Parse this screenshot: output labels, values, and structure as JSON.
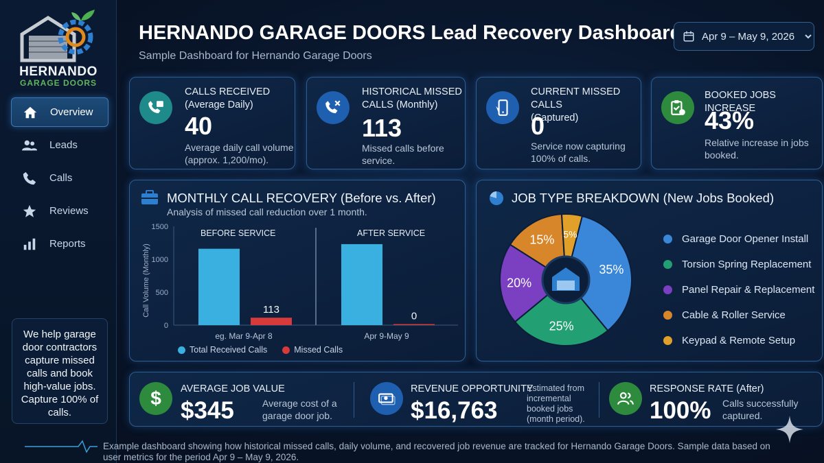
{
  "brand": {
    "name": "HERNANDO",
    "tagline": "GARAGE DOORS"
  },
  "header": {
    "title": "HERNANDO GARAGE DOORS Lead Recovery Dashboard",
    "subtitle": "Sample Dashboard for Hernando Garage Doors",
    "date_range": "Apr 9 – May 9, 2026"
  },
  "nav": [
    {
      "label": "Overview",
      "icon": "home-icon",
      "active": true
    },
    {
      "label": "Leads",
      "icon": "users-icon"
    },
    {
      "label": "Calls",
      "icon": "phone-icon"
    },
    {
      "label": "Reviews",
      "icon": "star-icon"
    },
    {
      "label": "Reports",
      "icon": "bar-chart-icon"
    }
  ],
  "promo": "We help garage door contractors capture missed calls and book high-value jobs. Capture 100% of calls.",
  "kpis": [
    {
      "label1": "CALLS RECEIVED",
      "label2": "(Average Daily)",
      "value": "40",
      "desc1": "Average daily call volume",
      "desc2": "(approx. 1,200/mo).",
      "icon": "calendar-phone-icon",
      "color": "#1e8a8a"
    },
    {
      "label1": "HISTORICAL MISSED",
      "label2": "CALLS (Monthly)",
      "value": "113",
      "desc1": "Missed calls before",
      "desc2": "service.",
      "icon": "missed-call-icon",
      "color": "#1f5fb0"
    },
    {
      "label1": "CURRENT MISSED CALLS",
      "label2": "(Captured)",
      "value": "0",
      "desc1": "Service now capturing",
      "desc2": "100% of calls.",
      "icon": "mobile-phone-icon",
      "color": "#1f5fb0"
    },
    {
      "label1": "BOOKED JOBS INCREASE",
      "label2": "",
      "value": "43%",
      "desc1": "Relative increase in jobs",
      "desc2": "booked.",
      "icon": "clipboard-up-icon",
      "color": "#2e8b3e"
    }
  ],
  "recovery": {
    "title": "MONTHLY CALL RECOVERY (Before vs. After)",
    "subtitle": "Analysis of missed call reduction over 1 month.",
    "before_label": "BEFORE SERVICE",
    "after_label": "AFTER SERVICE",
    "legend_total": "Total Received Calls",
    "legend_missed": "Missed Calls",
    "total_color": "#3ab0e0",
    "missed_color": "#d63a3a"
  },
  "jobs": {
    "title": "JOB TYPE BREAKDOWN (New Jobs Booked)"
  },
  "chart_data": [
    {
      "type": "bar",
      "ylabel": "Call Volume (Monthly)",
      "ylim": [
        0,
        1500
      ],
      "yticks": [
        1500,
        1000,
        500,
        0
      ],
      "categories": [
        "eg. Mar 9-Apr 8",
        "Apr 9-May 9"
      ],
      "series": [
        {
          "name": "Total Received Calls",
          "values": [
            1160,
            1230
          ]
        },
        {
          "name": "Missed Calls",
          "values": [
            113,
            0
          ]
        }
      ],
      "data_labels": [
        "113",
        "0"
      ]
    },
    {
      "type": "pie",
      "categories": [
        "Garage Door Opener Install",
        "Torsion Spring Replacement",
        "Panel Repair & Replacement",
        "Cable & Roller Service",
        "Keypad & Remote Setup"
      ],
      "values": [
        35,
        25,
        20,
        15,
        5
      ],
      "labels": [
        "35%",
        "25%",
        "20%",
        "15%",
        "5%"
      ],
      "colors": [
        "#3a86d8",
        "#22a074",
        "#7b3fc2",
        "#d8862a",
        "#e0a02a"
      ]
    }
  ],
  "bottom": [
    {
      "label": "AVERAGE JOB VALUE",
      "value": "$345",
      "desc": "Average cost of a garage door job.",
      "icon": "dollar-icon",
      "color": "#2e8b3e"
    },
    {
      "label": "REVENUE OPPORTUNITY",
      "value": "$16,763",
      "desc": "Estimated from incremental booked jobs (month period).",
      "icon": "money-icon",
      "color": "#1f5fb0"
    },
    {
      "label": "RESPONSE RATE (After)",
      "value": "100%",
      "desc": "Calls successfully captured.",
      "icon": "people-icon",
      "color": "#2e8b3e"
    }
  ],
  "footer": "Example dashboard showing how historical missed calls, daily volume, and recovered job revenue are tracked for Hernando Garage Doors. Sample data based on user metrics for the period Apr 9 – May 9, 2026."
}
